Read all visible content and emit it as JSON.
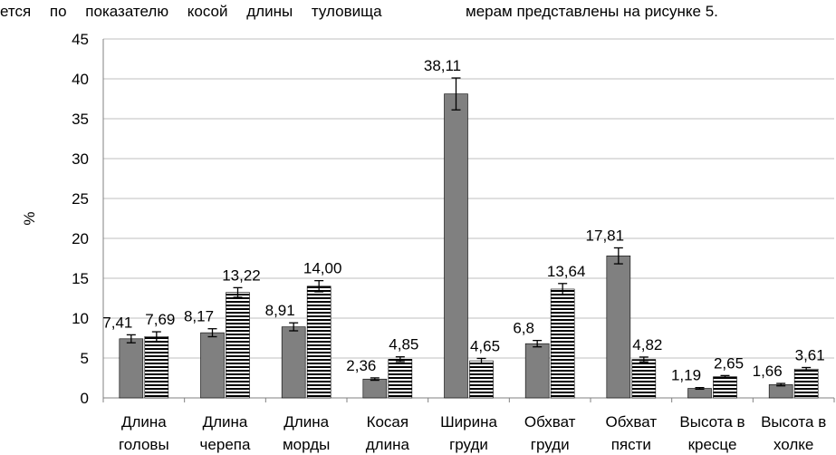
{
  "page_text": {
    "top_left": "ется по показателю косой длины туловища",
    "top_right": "мерам представлены на рисунке 5."
  },
  "colors": {
    "series_a": "#808080",
    "series_b_stripe": "#000000",
    "series_b_bg": "#ffffff",
    "grid": "#bfbfbf"
  },
  "chart_data": {
    "type": "bar",
    "ylabel": "%",
    "ylim": [
      0,
      45
    ],
    "yticks": [
      0,
      5,
      10,
      15,
      20,
      25,
      30,
      35,
      40,
      45
    ],
    "grid": true,
    "categories": [
      [
        "Длина",
        "головы"
      ],
      [
        "Длина",
        "черепа"
      ],
      [
        "Длина",
        "морды"
      ],
      [
        "Косая",
        "длина"
      ],
      [
        "Ширина",
        "груди"
      ],
      [
        "Обхват",
        "груди"
      ],
      [
        "Обхват",
        "пясти"
      ],
      [
        "Высота в",
        "кресце"
      ],
      [
        "Высота в",
        "холке"
      ]
    ],
    "series": [
      {
        "fill": "solid-gray",
        "values": [
          7.41,
          8.17,
          8.91,
          2.36,
          38.11,
          6.8,
          17.81,
          1.19,
          1.66
        ],
        "labels": [
          "7,41",
          "8,17",
          "8,91",
          "2,36",
          "38,11",
          "6,8",
          "17,81",
          "1,19",
          "1,66"
        ],
        "errors": [
          0.5,
          0.5,
          0.5,
          0.15,
          2.0,
          0.4,
          1.0,
          0.1,
          0.15
        ]
      },
      {
        "fill": "horizontal-stripes",
        "values": [
          7.69,
          13.22,
          14.0,
          4.85,
          4.65,
          13.64,
          4.82,
          2.65,
          3.61
        ],
        "labels": [
          "7,69",
          "13,22",
          "14,00",
          "4,85",
          "4,65",
          "13,64",
          "4,82",
          "2,65",
          "3,61"
        ],
        "errors": [
          0.6,
          0.6,
          0.7,
          0.3,
          0.3,
          0.7,
          0.3,
          0.15,
          0.2
        ]
      }
    ]
  }
}
